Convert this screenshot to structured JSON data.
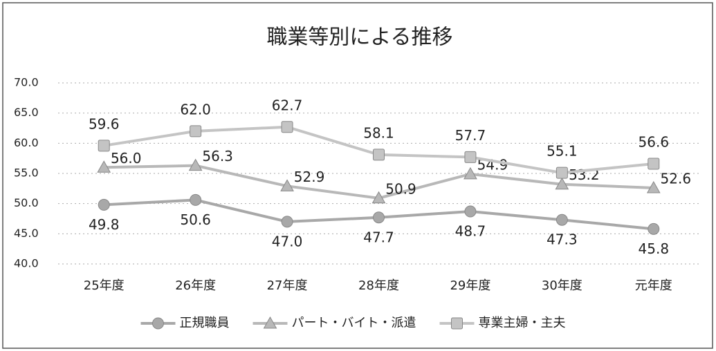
{
  "chart_data": {
    "type": "line",
    "title": "職業等別による推移",
    "categories": [
      "25年度",
      "26年度",
      "27年度",
      "28年度",
      "29年度",
      "30年度",
      "元年度"
    ],
    "series": [
      {
        "name": "正規職員",
        "color": "#a8a8a8",
        "marker": "circle",
        "values": [
          49.8,
          50.6,
          47.0,
          47.7,
          48.7,
          47.3,
          45.8
        ],
        "value_labels": [
          "49.8",
          "50.6",
          "47.0",
          "47.7",
          "48.7",
          "47.3",
          "45.8"
        ]
      },
      {
        "name": "パート・バイト・派遣",
        "color": "#b8b8b8",
        "marker": "triangle",
        "values": [
          56.0,
          56.3,
          52.9,
          50.9,
          54.9,
          53.2,
          52.6
        ],
        "value_labels": [
          "56.0",
          "56.3",
          "52.9",
          "50.9",
          "54.9",
          "53.2",
          "52.6"
        ]
      },
      {
        "name": "専業主婦・主夫",
        "color": "#c4c4c4",
        "marker": "square",
        "values": [
          59.6,
          62.0,
          62.7,
          58.1,
          57.7,
          55.1,
          56.6
        ],
        "value_labels": [
          "59.6",
          "62.0",
          "62.7",
          "58.1",
          "57.7",
          "55.1",
          "56.6"
        ]
      }
    ],
    "ylim": [
      40,
      70
    ],
    "yticks": [
      {
        "value": 40,
        "label": "40.0"
      },
      {
        "value": 45,
        "label": "45.0"
      },
      {
        "value": 50,
        "label": "50.0"
      },
      {
        "value": 55,
        "label": "55.0"
      },
      {
        "value": 60,
        "label": "60.0"
      },
      {
        "value": 65,
        "label": "65.0"
      },
      {
        "value": 70,
        "label": "70.0"
      }
    ],
    "grid": true,
    "legend": "bottom"
  }
}
